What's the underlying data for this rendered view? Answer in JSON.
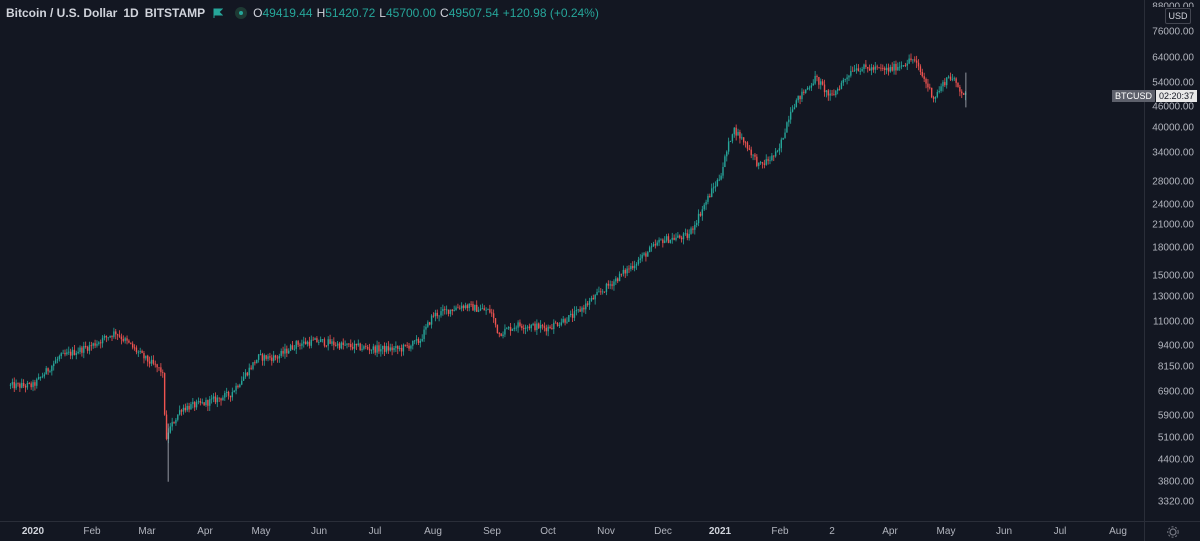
{
  "legend": {
    "title": "Bitcoin / U.S. Dollar",
    "interval": "1D",
    "exchange": "BITSTAMP",
    "flag_icon": "flag-icon",
    "eye_icon": "visibility-icon",
    "o_key": "O",
    "o_val": "49419.44",
    "h_key": "H",
    "h_val": "51420.72",
    "l_key": "L",
    "l_val": "45700.00",
    "c_key": "C",
    "c_val": "49507.54",
    "change": "+120.98 (+0.24%)"
  },
  "price_scale": {
    "currency": "USD",
    "top_clipped_label": "88000.00",
    "labels": [
      "76000.00",
      "64000.00",
      "54000.00",
      "46000.00",
      "40000.00",
      "34000.00",
      "28000.00",
      "24000.00",
      "21000.00",
      "18000.00",
      "15000.00",
      "13000.00",
      "11000.00",
      "9400.00",
      "8150.00",
      "6900.00",
      "5900.00",
      "5100.00",
      "4400.00",
      "3800.00",
      "3320.00"
    ],
    "badge_symbol": "BTCUSD",
    "badge_countdown": "02:20:37"
  },
  "time_scale": {
    "labels": [
      "2020",
      "Feb",
      "Mar",
      "Apr",
      "May",
      "Jun",
      "Jul",
      "Aug",
      "Sep",
      "Oct",
      "Nov",
      "Dec",
      "2021",
      "Feb",
      "2",
      "Apr",
      "May",
      "Jun",
      "Jul",
      "Aug"
    ],
    "bold_labels": [
      "2020",
      "2021"
    ],
    "settings_icon": "gear-icon"
  },
  "colors": {
    "background": "#131722",
    "up": "#26a69a",
    "down": "#ef5350",
    "wick_up": "#26a69a",
    "wick_down": "#ef5350",
    "text": "#d1d4dc",
    "axis_text": "#b2b5be"
  },
  "chart_data": {
    "type": "candlestick",
    "title": "Bitcoin / U.S. Dollar",
    "interval": "1D",
    "scale": "log",
    "ylim": [
      3000,
      90000
    ],
    "x": [
      "2019-12-20",
      "2020-01-01",
      "2020-01-15",
      "2020-02-01",
      "2020-02-14",
      "2020-03-01",
      "2020-03-10",
      "2020-03-12",
      "2020-03-13",
      "2020-03-20",
      "2020-04-01",
      "2020-04-15",
      "2020-04-30",
      "2020-05-10",
      "2020-05-20",
      "2020-06-01",
      "2020-06-15",
      "2020-07-01",
      "2020-07-15",
      "2020-07-25",
      "2020-08-01",
      "2020-08-17",
      "2020-09-01",
      "2020-09-05",
      "2020-09-15",
      "2020-10-01",
      "2020-10-15",
      "2020-11-01",
      "2020-11-15",
      "2020-12-01",
      "2020-12-15",
      "2020-12-27",
      "2021-01-01",
      "2021-01-08",
      "2021-01-15",
      "2021-01-22",
      "2021-02-01",
      "2021-02-08",
      "2021-02-21",
      "2021-03-01",
      "2021-03-13",
      "2021-04-01",
      "2021-04-14",
      "2021-04-25",
      "2021-05-03",
      "2021-05-12"
    ],
    "close": [
      7200,
      7200,
      8700,
      9400,
      10300,
      8600,
      7900,
      4900,
      5300,
      6200,
      6400,
      6800,
      8700,
      8700,
      9500,
      9700,
      9400,
      9200,
      9200,
      9700,
      11500,
      12300,
      11800,
      10200,
      10800,
      10600,
      11500,
      13800,
      16000,
      19000,
      19500,
      26000,
      29000,
      40000,
      36000,
      31000,
      34000,
      46000,
      56000,
      49000,
      60000,
      59000,
      63500,
      49000,
      57000,
      49500
    ]
  }
}
